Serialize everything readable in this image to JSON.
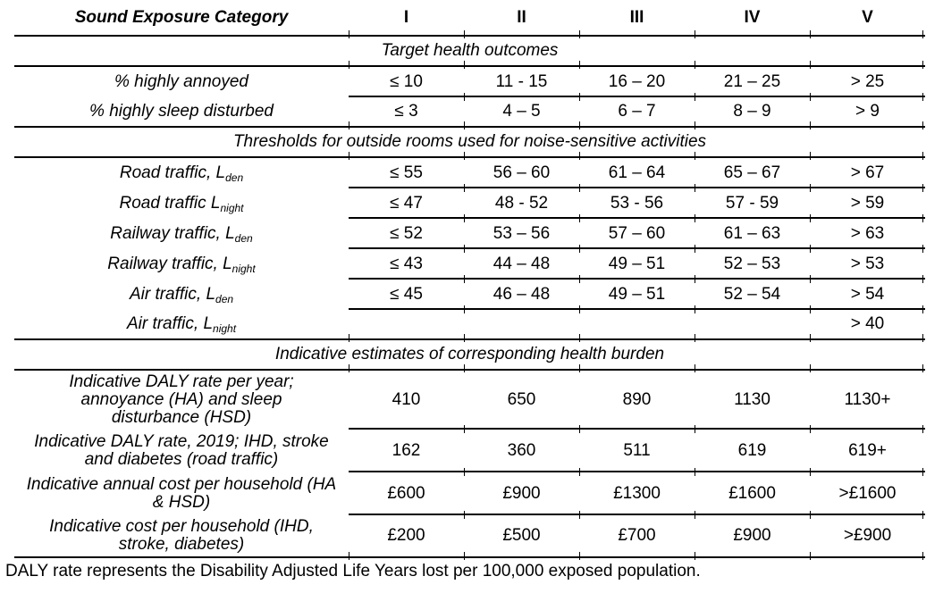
{
  "table": {
    "title": "Sound Exposure Category",
    "columns": [
      "I",
      "II",
      "III",
      "IV",
      "V"
    ],
    "sections": {
      "outcomes": "Target health outcomes",
      "thresholds": "Thresholds for outside rooms used for noise-sensitive activities",
      "burden": "Indicative estimates of corresponding health burden"
    },
    "outcome_rows": [
      {
        "label": "% highly annoyed",
        "values": [
          "≤ 10",
          "11 - 15",
          "16 – 20",
          "21 – 25",
          "> 25"
        ]
      },
      {
        "label": "% highly sleep disturbed",
        "values": [
          "≤ 3",
          "4 – 5",
          "6 – 7",
          "8 – 9",
          "> 9"
        ]
      }
    ],
    "threshold_rows": [
      {
        "label_main": "Road traffic, L",
        "label_sub": "den",
        "values": [
          "≤ 55",
          "56 – 60",
          "61 – 64",
          "65 – 67",
          "> 67"
        ]
      },
      {
        "label_main": "Road traffic L",
        "label_sub": "night",
        "values": [
          "≤ 47",
          "48 - 52",
          "53 - 56",
          "57 - 59",
          "> 59"
        ]
      },
      {
        "label_main": "Railway traffic, L",
        "label_sub": "den",
        "values": [
          "≤ 52",
          "53 – 56",
          "57 – 60",
          "61 – 63",
          "> 63"
        ]
      },
      {
        "label_main": "Railway traffic, L",
        "label_sub": "night",
        "values": [
          "≤ 43",
          "44 – 48",
          "49 – 51",
          "52 – 53",
          "> 53"
        ]
      },
      {
        "label_main": "Air traffic, L",
        "label_sub": "den",
        "values": [
          "≤ 45",
          "46 – 48",
          "49 – 51",
          "52 – 54",
          "> 54"
        ]
      },
      {
        "label_main": "Air traffic, L",
        "label_sub": "night",
        "values": [
          "",
          "",
          "",
          "",
          "> 40"
        ]
      }
    ],
    "burden_rows": [
      {
        "label": "Indicative DALY rate per year; annoyance (HA) and sleep disturbance (HSD)",
        "values": [
          "410",
          "650",
          "890",
          "1130",
          "1130+"
        ]
      },
      {
        "label": "Indicative DALY rate, 2019; IHD, stroke and diabetes (road traffic)",
        "values": [
          "162",
          "360",
          "511",
          "619",
          "619+"
        ]
      },
      {
        "label": "Indicative annual cost per household (HA & HSD)",
        "values": [
          "£600",
          "£900",
          "£1300",
          "£1600",
          ">£1600"
        ]
      },
      {
        "label": "Indicative cost per household (IHD, stroke, diabetes)",
        "values": [
          "£200",
          "£500",
          "£700",
          "£900",
          ">£900"
        ]
      }
    ]
  },
  "footnote": "DALY rate represents the Disability Adjusted Life Years lost per 100,000 exposed population."
}
